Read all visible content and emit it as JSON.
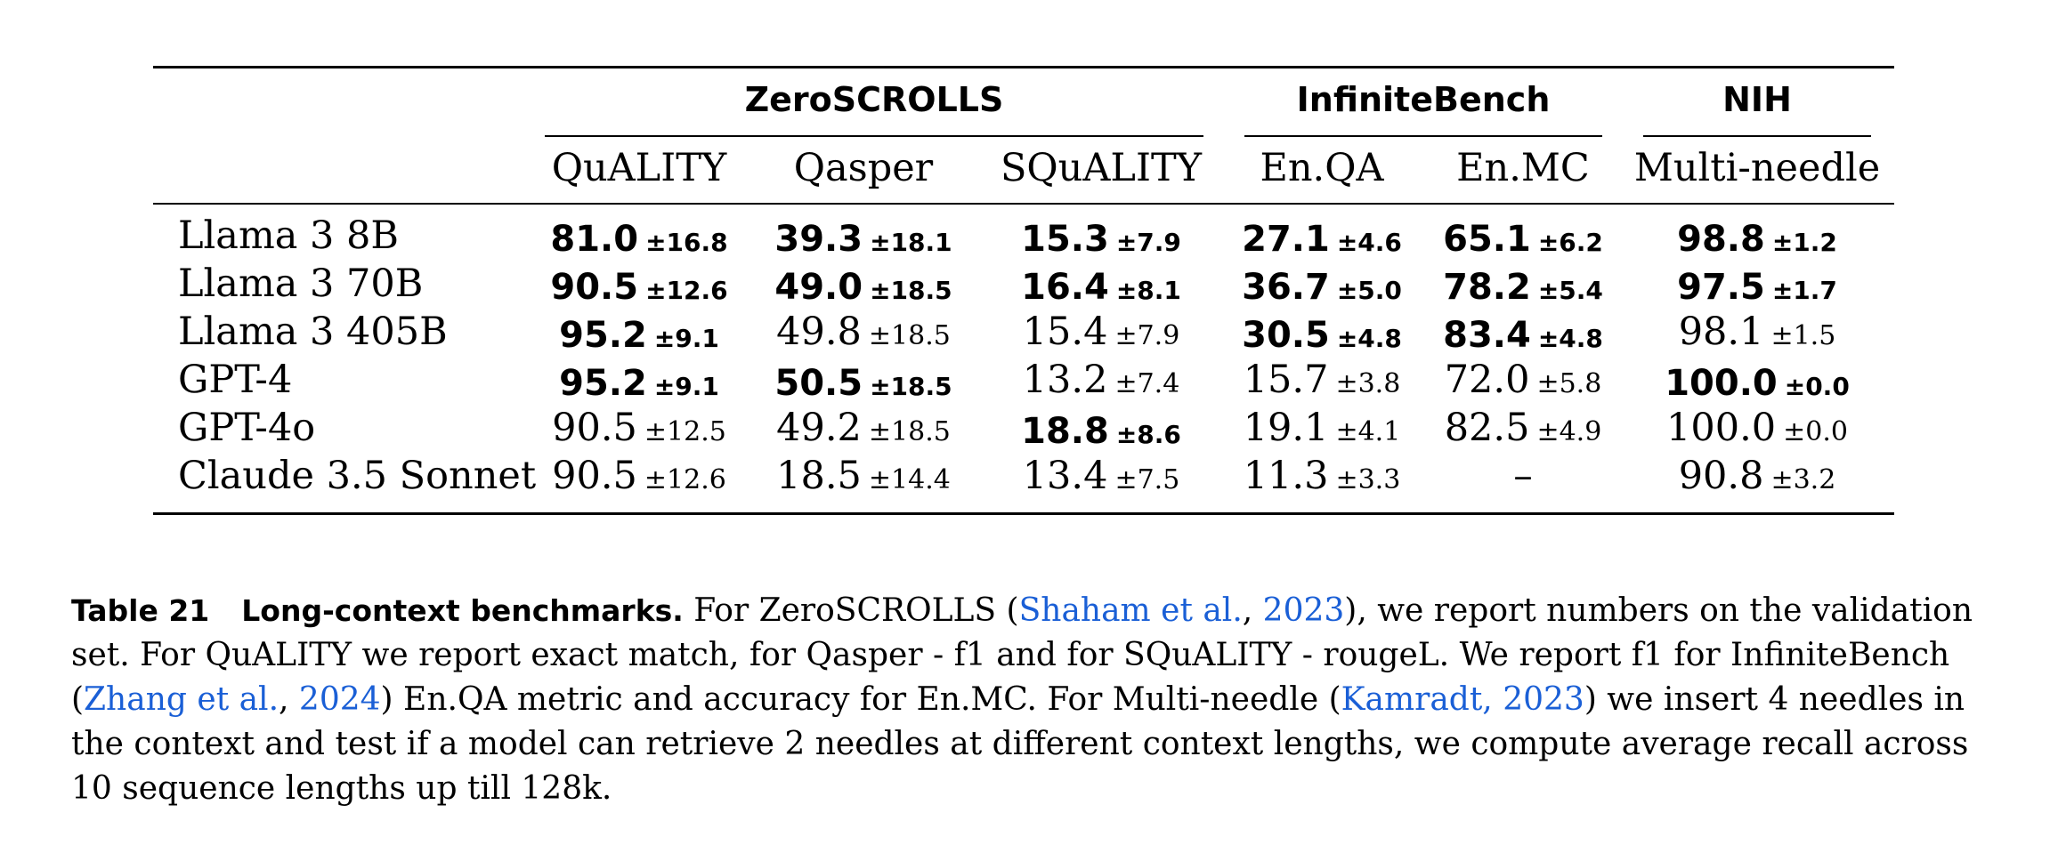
{
  "table": {
    "groups": [
      {
        "label": "ZeroSCROLLS",
        "columns": [
          "QuALITY",
          "Qasper",
          "SQuALITY"
        ]
      },
      {
        "label": "InfiniteBench",
        "columns": [
          "En.QA",
          "En.MC"
        ]
      },
      {
        "label": "NIH",
        "columns": [
          "Multi-needle"
        ]
      }
    ],
    "rows": [
      {
        "model": "Llama 3 8B",
        "cells": [
          {
            "mean": "81.0",
            "std": "±16.8",
            "bold": true
          },
          {
            "mean": "39.3",
            "std": "±18.1",
            "bold": true
          },
          {
            "mean": "15.3",
            "std": "±7.9",
            "bold": true
          },
          {
            "mean": "27.1",
            "std": "±4.6",
            "bold": true
          },
          {
            "mean": "65.1",
            "std": "±6.2",
            "bold": true
          },
          {
            "mean": "98.8",
            "std": "±1.2",
            "bold": true
          }
        ]
      },
      {
        "model": "Llama 3 70B",
        "cells": [
          {
            "mean": "90.5",
            "std": "±12.6",
            "bold": true
          },
          {
            "mean": "49.0",
            "std": "±18.5",
            "bold": true
          },
          {
            "mean": "16.4",
            "std": "±8.1",
            "bold": true
          },
          {
            "mean": "36.7",
            "std": "±5.0",
            "bold": true
          },
          {
            "mean": "78.2",
            "std": "±5.4",
            "bold": true
          },
          {
            "mean": "97.5",
            "std": "±1.7",
            "bold": true
          }
        ]
      },
      {
        "model": "Llama 3 405B",
        "cells": [
          {
            "mean": "95.2",
            "std": "±9.1",
            "bold": true
          },
          {
            "mean": "49.8",
            "std": "±18.5",
            "bold": false
          },
          {
            "mean": "15.4",
            "std": "±7.9",
            "bold": false
          },
          {
            "mean": "30.5",
            "std": "±4.8",
            "bold": true
          },
          {
            "mean": "83.4",
            "std": "±4.8",
            "bold": true
          },
          {
            "mean": "98.1",
            "std": "±1.5",
            "bold": false
          }
        ]
      },
      {
        "model": "GPT-4",
        "cells": [
          {
            "mean": "95.2",
            "std": "±9.1",
            "bold": true
          },
          {
            "mean": "50.5",
            "std": "±18.5",
            "bold": true
          },
          {
            "mean": "13.2",
            "std": "±7.4",
            "bold": false
          },
          {
            "mean": "15.7",
            "std": "±3.8",
            "bold": false
          },
          {
            "mean": "72.0",
            "std": "±5.8",
            "bold": false
          },
          {
            "mean": "100.0",
            "std": "±0.0",
            "bold": true
          }
        ]
      },
      {
        "model": "GPT-4o",
        "cells": [
          {
            "mean": "90.5",
            "std": "±12.5",
            "bold": false
          },
          {
            "mean": "49.2",
            "std": "±18.5",
            "bold": false
          },
          {
            "mean": "18.8",
            "std": "±8.6",
            "bold": true
          },
          {
            "mean": "19.1",
            "std": "±4.1",
            "bold": false
          },
          {
            "mean": "82.5",
            "std": "±4.9",
            "bold": false
          },
          {
            "mean": "100.0",
            "std": "±0.0",
            "bold": false
          }
        ]
      },
      {
        "model": "Claude 3.5 Sonnet",
        "cells": [
          {
            "mean": "90.5",
            "std": "±12.6",
            "bold": false
          },
          {
            "mean": "18.5",
            "std": "±14.4",
            "bold": false
          },
          {
            "mean": "13.4",
            "std": "±7.5",
            "bold": false
          },
          {
            "mean": "11.3",
            "std": "±3.3",
            "bold": false
          },
          {
            "mean": "–",
            "std": "",
            "bold": false
          },
          {
            "mean": "90.8",
            "std": "±3.2",
            "bold": false
          }
        ]
      }
    ]
  },
  "caption": {
    "label": "Table 21",
    "title": "Long-context benchmarks.",
    "t1": " For ZeroSCROLLS (",
    "cite1_authors": "Shaham et al.",
    "cite1_sep": ", ",
    "cite1_year": "2023",
    "t2": "), we report numbers on the validation set. For QuALITY we report exact match, for Qasper - f1 and for SQuALITY - rougeL. We report f1 for InfiniteBench (",
    "cite2_authors": "Zhang et al.",
    "cite2_sep": ", ",
    "cite2_year": "2024",
    "t3": ") En.QA metric and accuracy for En.MC. For Multi-needle  (",
    "cite3_text": "Kamradt, 2023",
    "t4": ") we insert 4 needles in the context and test if a model can retrieve 2 needles at different context lengths, we compute average recall across 10 sequence lengths up till 128k."
  }
}
